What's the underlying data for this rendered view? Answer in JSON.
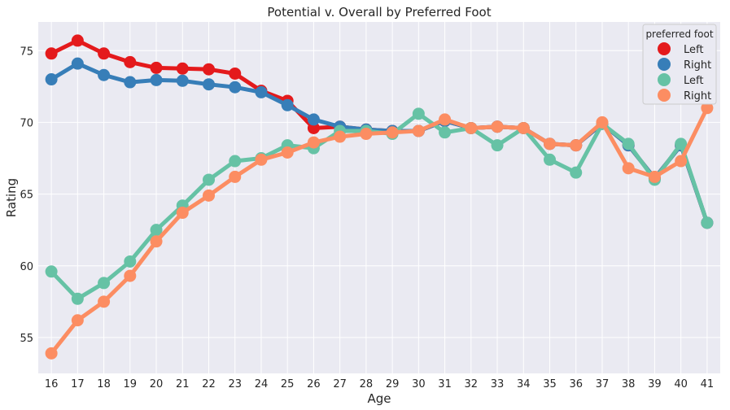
{
  "chart_data": {
    "type": "line",
    "title": "Potential v. Overall by Preferred Foot",
    "xlabel": "Age",
    "ylabel": "Rating",
    "categories": [
      "16",
      "17",
      "18",
      "19",
      "20",
      "21",
      "22",
      "23",
      "24",
      "25",
      "26",
      "27",
      "28",
      "29",
      "30",
      "31",
      "32",
      "33",
      "34",
      "35",
      "36",
      "37",
      "38",
      "39",
      "40",
      "41"
    ],
    "yticks": [
      55,
      60,
      65,
      70,
      75
    ],
    "ylim": [
      52.5,
      77
    ],
    "grid": true,
    "legend": {
      "title": "preferred foot",
      "placement": "top-right",
      "entries": [
        "Left",
        "Right",
        "Left",
        "Right"
      ]
    },
    "series": [
      {
        "name": "Left",
        "color": "#e41a1c",
        "values": [
          74.8,
          75.7,
          74.8,
          74.2,
          73.8,
          73.75,
          73.7,
          73.4,
          72.2,
          71.5,
          69.6,
          69.7,
          69.5,
          69.4,
          69.4,
          70.1,
          69.6,
          69.7,
          69.6,
          68.5,
          68.4,
          69.9,
          68.4,
          66.1,
          68.4,
          63.0
        ]
      },
      {
        "name": "Right",
        "color": "#377eb8",
        "values": [
          73.0,
          74.1,
          73.3,
          72.8,
          72.95,
          72.9,
          72.65,
          72.45,
          72.1,
          71.2,
          70.2,
          69.7,
          69.5,
          69.4,
          69.4,
          70.1,
          69.6,
          69.7,
          69.6,
          68.5,
          68.4,
          69.9,
          68.4,
          66.1,
          68.4,
          63.0
        ]
      },
      {
        "name": "Left",
        "color": "#66c2a5",
        "values": [
          59.6,
          57.7,
          58.8,
          60.3,
          62.5,
          64.2,
          66.0,
          67.3,
          67.5,
          68.4,
          68.2,
          69.4,
          69.4,
          69.2,
          70.6,
          69.3,
          69.6,
          68.4,
          69.6,
          67.4,
          66.5,
          69.9,
          68.5,
          66.0,
          68.5,
          63.0
        ]
      },
      {
        "name": "Right",
        "color": "#fc8d62",
        "values": [
          53.9,
          56.2,
          57.5,
          59.3,
          61.7,
          63.7,
          64.9,
          66.2,
          67.4,
          67.9,
          68.6,
          69.0,
          69.2,
          69.3,
          69.4,
          70.2,
          69.6,
          69.7,
          69.6,
          68.5,
          68.4,
          70.0,
          66.8,
          66.2,
          67.3,
          71.0
        ]
      }
    ]
  }
}
